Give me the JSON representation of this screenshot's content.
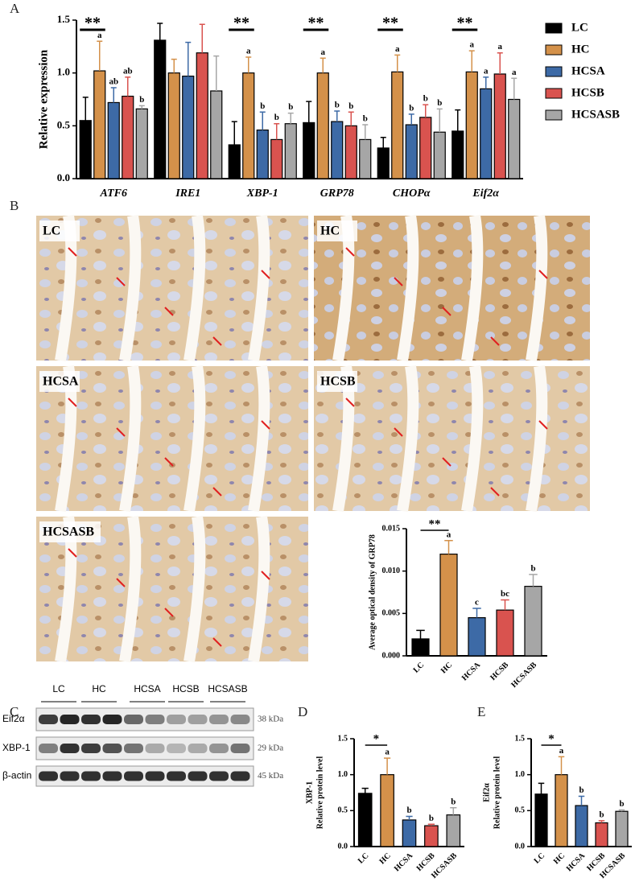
{
  "panel_labels": [
    "A",
    "B",
    "C",
    "D",
    "E"
  ],
  "chart_data": [
    {
      "type": "bar",
      "categories": [
        "ATF6",
        "IRE1",
        "XBP-1",
        "GRP78",
        "CHOPα",
        "Eif2α"
      ],
      "ylabel": "Relative expression",
      "ylim": [
        0,
        1.5
      ],
      "yticks": [
        {
          "value": 0,
          "label": "0.0"
        },
        {
          "value": 0.5,
          "label": "0.5"
        },
        {
          "value": 1,
          "label": "1.0"
        },
        {
          "value": 1.5,
          "label": "1.5"
        }
      ],
      "legend": "right",
      "significance": [
        "**",
        null,
        "**",
        "**",
        "**",
        "**"
      ],
      "series": [
        {
          "name": "LC",
          "color": "#000000",
          "values": [
            0.55,
            1.31,
            0.32,
            0.53,
            0.29,
            0.45
          ],
          "errors": [
            0.22,
            0.16,
            0.22,
            0.2,
            0.1,
            0.2
          ]
        },
        {
          "name": "HC",
          "color": "#d4914a",
          "values": [
            1.02,
            1.0,
            1.0,
            1.0,
            1.01,
            1.01
          ],
          "errors": [
            0.28,
            0.13,
            0.15,
            0.14,
            0.16,
            0.2
          ],
          "letters": [
            "a",
            null,
            "a",
            "a",
            "a",
            "a"
          ]
        },
        {
          "name": "HCSA",
          "color": "#3d6aa6",
          "values": [
            0.72,
            0.97,
            0.46,
            0.54,
            0.51,
            0.85
          ],
          "errors": [
            0.14,
            0.32,
            0.17,
            0.1,
            0.1,
            0.11
          ],
          "letters": [
            "ab",
            null,
            "b",
            "b",
            "b",
            "a"
          ]
        },
        {
          "name": "HCSB",
          "color": "#d9534f",
          "values": [
            0.78,
            1.19,
            0.37,
            0.5,
            0.58,
            0.99
          ],
          "errors": [
            0.18,
            0.27,
            0.15,
            0.13,
            0.12,
            0.2
          ],
          "letters": [
            "ab",
            null,
            "b",
            "b",
            "b",
            "a"
          ]
        },
        {
          "name": "HCSASB",
          "color": "#a6a6a6",
          "values": [
            0.66,
            0.83,
            0.52,
            0.37,
            0.44,
            0.75
          ],
          "errors": [
            0.03,
            0.33,
            0.1,
            0.14,
            0.22,
            0.2
          ],
          "letters": [
            "b",
            null,
            "b",
            "b",
            "b",
            "a"
          ]
        }
      ]
    },
    {
      "type": "bar",
      "categories": [
        "LC",
        "HC",
        "HCSA",
        "HCSB",
        "HCSASB"
      ],
      "ylabel": "Average optical density of GRP78",
      "ylim": [
        0,
        0.015
      ],
      "yticks": [
        {
          "value": 0,
          "label": "0.000"
        },
        {
          "value": 0.005,
          "label": "0.005"
        },
        {
          "value": 0.01,
          "label": "0.010"
        },
        {
          "value": 0.015,
          "label": "0.015"
        }
      ],
      "values": [
        0.002,
        0.012,
        0.0045,
        0.0054,
        0.0082
      ],
      "errors": [
        0.001,
        0.0016,
        0.0011,
        0.0012,
        0.0014
      ],
      "letters": [
        null,
        "a",
        "c",
        "bc",
        "b"
      ],
      "colors": [
        "#000000",
        "#d4914a",
        "#3d6aa6",
        "#d9534f",
        "#a6a6a6"
      ],
      "significance": "**"
    },
    {
      "type": "bar",
      "categories": [
        "LC",
        "HC",
        "HCSA",
        "HCSB",
        "HCSASB"
      ],
      "ylabel": [
        "XBP-1",
        "Relative protein level"
      ],
      "ylim": [
        0,
        1.5
      ],
      "yticks": [
        {
          "value": 0,
          "label": "0.0"
        },
        {
          "value": 0.5,
          "label": "0.5"
        },
        {
          "value": 1,
          "label": "1.0"
        },
        {
          "value": 1.5,
          "label": "1.5"
        }
      ],
      "values": [
        0.74,
        1.0,
        0.37,
        0.29,
        0.44
      ],
      "errors": [
        0.07,
        0.23,
        0.05,
        0.02,
        0.1
      ],
      "letters": [
        null,
        "a",
        "b",
        "b",
        "b"
      ],
      "colors": [
        "#000000",
        "#d4914a",
        "#3d6aa6",
        "#d9534f",
        "#a6a6a6"
      ],
      "significance": "*"
    },
    {
      "type": "bar",
      "categories": [
        "LC",
        "HC",
        "HCSA",
        "HCSB",
        "HCSASB"
      ],
      "ylabel": [
        "Eif2α",
        "Relative protein level"
      ],
      "ylim": [
        0,
        1.5
      ],
      "yticks": [
        {
          "value": 0,
          "label": "0.0"
        },
        {
          "value": 0.5,
          "label": "0.5"
        },
        {
          "value": 1,
          "label": "1.0"
        },
        {
          "value": 1.5,
          "label": "1.5"
        }
      ],
      "values": [
        0.73,
        1.0,
        0.57,
        0.33,
        0.49
      ],
      "errors": [
        0.15,
        0.25,
        0.13,
        0.03,
        0.02
      ],
      "letters": [
        null,
        "a",
        "b",
        "b",
        "b"
      ],
      "colors": [
        "#000000",
        "#d4914a",
        "#3d6aa6",
        "#d9534f",
        "#a6a6a6"
      ],
      "significance": "*"
    }
  ],
  "micrographs": [
    "LC",
    "HC",
    "HCSA",
    "HCSB",
    "HCSASB"
  ],
  "blot": {
    "lanes": [
      "LC",
      "HC",
      "HCSA",
      "HCSB",
      "HCSASB"
    ],
    "rows": [
      {
        "name": "Eif2α",
        "size": "38 kDa"
      },
      {
        "name": "XBP-1",
        "size": "29 kDa"
      },
      {
        "name": "β-actin",
        "size": "45 kDa"
      }
    ]
  }
}
